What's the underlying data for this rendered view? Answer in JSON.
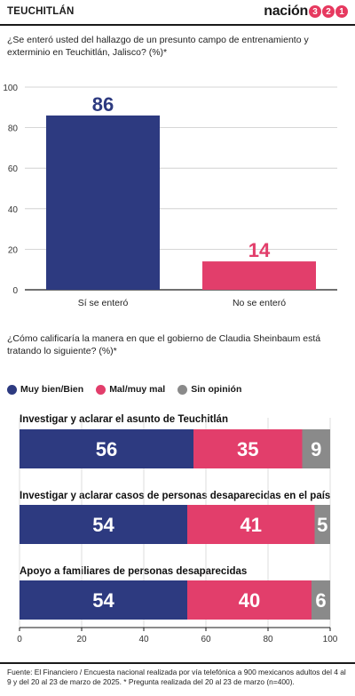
{
  "header": {
    "section": "TEUCHITLÁN",
    "brand_word": "nación",
    "brand_digits": [
      "3",
      "2",
      "1"
    ]
  },
  "question1": "¿Se enteró usted del hallazgo de un presunto campo de entrenamiento y exterminio en Teuchitlán, Jalisco?  (%)*",
  "question2": "¿Cómo calificaría la manera en que el gobierno de Claudia Sheinbaum está tratando lo siguiente? (%)*",
  "legend": [
    {
      "label": "Muy bien/Bien",
      "color": "#2d3a80"
    },
    {
      "label": "Mal/muy mal",
      "color": "#e23e6b"
    },
    {
      "label": "Sin opinión",
      "color": "#8a8a8a"
    }
  ],
  "chart_data": [
    {
      "type": "bar",
      "categories": [
        "Sí se enteró",
        "No se enteró"
      ],
      "values": [
        86,
        14
      ],
      "colors": [
        "#2d3a80",
        "#e23e6b"
      ],
      "ylim": [
        0,
        100
      ],
      "yticks": [
        0,
        20,
        40,
        60,
        80,
        100
      ],
      "grid": true
    },
    {
      "type": "bar",
      "orientation": "horizontal",
      "stacked": true,
      "categories": [
        "Investigar y aclarar el asunto de Teuchitlán",
        "Investigar y aclarar casos de personas desaparecidas en el país",
        "Apoyo a familiares de personas desaparecidas"
      ],
      "series": [
        {
          "name": "Muy bien/Bien",
          "values": [
            56,
            54,
            54
          ],
          "color": "#2d3a80"
        },
        {
          "name": "Mal/muy mal",
          "values": [
            35,
            41,
            40
          ],
          "color": "#e23e6b"
        },
        {
          "name": "Sin opinión",
          "values": [
            9,
            5,
            6
          ],
          "color": "#8a8a8a"
        }
      ],
      "xlim": [
        0,
        100
      ],
      "xticks": [
        0,
        20,
        40,
        60,
        80,
        100
      ],
      "legend": "top-left"
    }
  ],
  "footer": "Fuente: El Financiero /  Encuesta nacional realizada por vía telefónica a 900 mexicanos adultos del 4 al 9 y del 20 al 23 de marzo de 2025. * Pregunta realizada del 20 al 23 de marzo (n=400)."
}
